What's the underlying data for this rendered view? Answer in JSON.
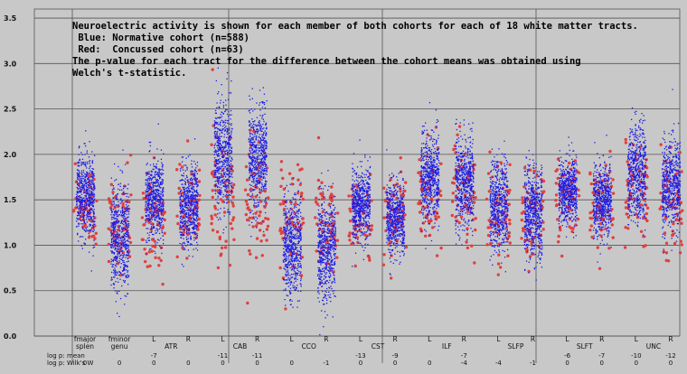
{
  "chart_data": {
    "type": "scatter",
    "ylim": [
      0,
      3.6
    ],
    "yticks": [
      "0.0",
      "0.5",
      "1.0",
      "1.5",
      "2.0",
      "2.5",
      "3.0",
      "3.5"
    ],
    "annotation": [
      "Neuroelectric activity is shown for each member of both cohorts for each of 18 white matter tracts.",
      " Blue: Normative cohort (n=588)",
      " Red:  Concussed cohort (n=63)",
      "The p-value for each tract for the difference between the cohort means was obtained using",
      "Welch's t-statistic."
    ],
    "colors": {
      "normative": "#1a1ae6",
      "concussed": "#e04040",
      "background": "#c8c8c8",
      "grid": "#555555"
    },
    "row_labels": {
      "log_p": "log p:",
      "mean": "mean",
      "wilks": "Wilk's W"
    },
    "groups": [
      {
        "name": "",
        "labels": [
          {
            "text": "fmajor",
            "line": 1
          },
          {
            "text": "splen",
            "line": 2
          },
          {
            "text": "fminor",
            "line": 1
          },
          {
            "text": "genu",
            "line": 2
          }
        ]
      },
      {
        "name": "ATR",
        "labels": [
          {
            "text": "L",
            "line": 0
          },
          {
            "text": "R",
            "line": 0
          }
        ]
      },
      {
        "name": "CAB",
        "labels": [
          {
            "text": "L",
            "line": 0
          },
          {
            "text": "R",
            "line": 0
          }
        ]
      },
      {
        "name": "CCO",
        "labels": [
          {
            "text": "L",
            "line": 0
          },
          {
            "text": "R",
            "line": 0
          }
        ]
      },
      {
        "name": "CST",
        "labels": [
          {
            "text": "L",
            "line": 0
          },
          {
            "text": "R",
            "line": 0
          }
        ]
      },
      {
        "name": "ILF",
        "labels": [
          {
            "text": "L",
            "line": 0
          },
          {
            "text": "R",
            "line": 0
          }
        ]
      },
      {
        "name": "SLFP",
        "labels": [
          {
            "text": "L",
            "line": 0
          },
          {
            "text": "R",
            "line": 0
          }
        ]
      },
      {
        "name": "SLFT",
        "labels": [
          {
            "text": "L",
            "line": 0
          },
          {
            "text": "R",
            "line": 0
          }
        ]
      },
      {
        "name": "UNC",
        "labels": [
          {
            "text": "L",
            "line": 0
          },
          {
            "text": "R",
            "line": 0
          }
        ]
      }
    ],
    "tracts": [
      {
        "id": "fmajor",
        "normative_mean": 1.55,
        "normative_sd": 0.22,
        "concussed_mean": 1.45,
        "concussed_sd": 0.22,
        "log_p_mean": "",
        "wilks_w": "0"
      },
      {
        "id": "fminor",
        "normative_mean": 1.1,
        "normative_sd": 0.28,
        "concussed_mean": 1.2,
        "concussed_sd": 0.3,
        "log_p_mean": "",
        "wilks_w": "0"
      },
      {
        "id": "ATR-L",
        "normative_mean": 1.5,
        "normative_sd": 0.22,
        "concussed_mean": 1.25,
        "concussed_sd": 0.28,
        "log_p_mean": "-7",
        "wilks_w": "0"
      },
      {
        "id": "ATR-R",
        "normative_mean": 1.45,
        "normative_sd": 0.22,
        "concussed_mean": 1.4,
        "concussed_sd": 0.25,
        "log_p_mean": "",
        "wilks_w": "0"
      },
      {
        "id": "CAB-L",
        "normative_mean": 2.0,
        "normative_sd": 0.3,
        "concussed_mean": 1.6,
        "concussed_sd": 0.35,
        "log_p_mean": "-11",
        "wilks_w": "0"
      },
      {
        "id": "CAB-R",
        "normative_mean": 1.95,
        "normative_sd": 0.28,
        "concussed_mean": 1.55,
        "concussed_sd": 0.35,
        "log_p_mean": "-11",
        "wilks_w": "0"
      },
      {
        "id": "CCO-L",
        "normative_mean": 1.0,
        "normative_sd": 0.28,
        "concussed_mean": 1.3,
        "concussed_sd": 0.3,
        "log_p_mean": "",
        "wilks_w": "0"
      },
      {
        "id": "CCO-R",
        "normative_mean": 0.95,
        "normative_sd": 0.28,
        "concussed_mean": 1.2,
        "concussed_sd": 0.3,
        "log_p_mean": "",
        "wilks_w": "-1"
      },
      {
        "id": "CST-L",
        "normative_mean": 1.45,
        "normative_sd": 0.2,
        "concussed_mean": 1.25,
        "concussed_sd": 0.25,
        "log_p_mean": "-13",
        "wilks_w": "0"
      },
      {
        "id": "CST-R",
        "normative_mean": 1.3,
        "normative_sd": 0.2,
        "concussed_mean": 1.35,
        "concussed_sd": 0.25,
        "log_p_mean": "-9",
        "wilks_w": "0"
      },
      {
        "id": "ILF-L",
        "normative_mean": 1.75,
        "normative_sd": 0.25,
        "concussed_mean": 1.5,
        "concussed_sd": 0.3,
        "log_p_mean": "",
        "wilks_w": "0"
      },
      {
        "id": "ILF-R",
        "normative_mean": 1.7,
        "normative_sd": 0.25,
        "concussed_mean": 1.5,
        "concussed_sd": 0.3,
        "log_p_mean": "-7",
        "wilks_w": "-4"
      },
      {
        "id": "SLFP-L",
        "normative_mean": 1.45,
        "normative_sd": 0.25,
        "concussed_mean": 1.3,
        "concussed_sd": 0.3,
        "log_p_mean": "",
        "wilks_w": "-4"
      },
      {
        "id": "SLFP-R",
        "normative_mean": 1.35,
        "normative_sd": 0.25,
        "concussed_mean": 1.35,
        "concussed_sd": 0.3,
        "log_p_mean": "",
        "wilks_w": "-1"
      },
      {
        "id": "SLFT-L",
        "normative_mean": 1.6,
        "normative_sd": 0.18,
        "concussed_mean": 1.5,
        "concussed_sd": 0.25,
        "log_p_mean": "-6",
        "wilks_w": "0"
      },
      {
        "id": "SLFT-R",
        "normative_mean": 1.5,
        "normative_sd": 0.2,
        "concussed_mean": 1.45,
        "concussed_sd": 0.25,
        "log_p_mean": "-7",
        "wilks_w": "0"
      },
      {
        "id": "UNC-L",
        "normative_mean": 1.8,
        "normative_sd": 0.25,
        "concussed_mean": 1.55,
        "concussed_sd": 0.3,
        "log_p_mean": "-10",
        "wilks_w": "0"
      },
      {
        "id": "UNC-R",
        "normative_mean": 1.65,
        "normative_sd": 0.25,
        "concussed_mean": 1.5,
        "concussed_sd": 0.3,
        "log_p_mean": "-12",
        "wilks_w": "0"
      }
    ]
  }
}
